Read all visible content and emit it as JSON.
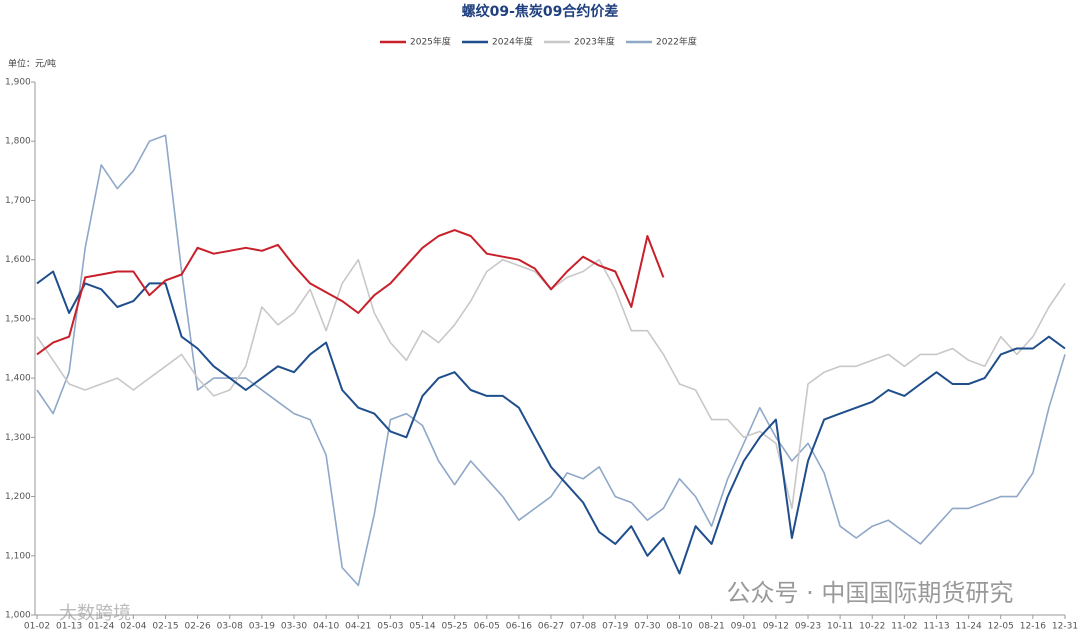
{
  "chart_data": {
    "type": "line",
    "title": "螺纹09-焦炭09合约价差",
    "y_unit": "单位：元/吨",
    "watermarks": [
      "公众号 · 中国国际期货研究",
      "大数跨境"
    ],
    "categories": [
      "01-02",
      null,
      "01-13",
      null,
      "01-24",
      null,
      "02-04",
      null,
      "02-15",
      null,
      "02-26",
      null,
      "03-08",
      null,
      "03-19",
      null,
      "03-30",
      null,
      "04-10",
      null,
      "04-21",
      null,
      "05-03",
      null,
      "05-14",
      null,
      "05-25",
      null,
      "06-05",
      null,
      "06-16",
      null,
      "06-27",
      null,
      "07-08",
      null,
      "07-19",
      null,
      "07-30",
      null,
      "08-10",
      null,
      "08-21",
      null,
      "09-01",
      null,
      "09-12",
      null,
      "09-23",
      null,
      "10-11",
      null,
      "10-22",
      null,
      "11-02",
      null,
      "11-13",
      null,
      "11-24",
      null,
      "12-05",
      null,
      "12-16",
      null,
      "12-31"
    ],
    "series": [
      {
        "name": "2025年度",
        "color": "#c8202a",
        "values": [
          1440,
          1460,
          1470,
          1570,
          1575,
          1580,
          1580,
          1540,
          1565,
          1575,
          1620,
          1610,
          1615,
          1620,
          1615,
          1625,
          1590,
          1560,
          1545,
          1530,
          1510,
          1540,
          1560,
          1590,
          1620,
          1640,
          1650,
          1640,
          1610,
          1605,
          1600,
          1585,
          1550,
          1580,
          1605,
          1590,
          1580,
          1520,
          1640,
          1570,
          null,
          null,
          null,
          null,
          null,
          null,
          null,
          null,
          null,
          null,
          null,
          null,
          null,
          null,
          null,
          null,
          null,
          null,
          null,
          null,
          null,
          null,
          null,
          null,
          null
        ]
      },
      {
        "name": "2024年度",
        "color": "#1f4e8c",
        "values": [
          1560,
          1580,
          1510,
          1560,
          1550,
          1520,
          1530,
          1560,
          1560,
          1470,
          1450,
          1420,
          1400,
          1380,
          1400,
          1420,
          1410,
          1440,
          1460,
          1380,
          1350,
          1340,
          1310,
          1300,
          1370,
          1400,
          1410,
          1380,
          1370,
          1370,
          1350,
          1300,
          1250,
          1220,
          1190,
          1140,
          1120,
          1150,
          1100,
          1130,
          1070,
          1150,
          1120,
          1200,
          1260,
          1300,
          1330,
          1130,
          1260,
          1330,
          1340,
          1350,
          1360,
          1380,
          1370,
          1390,
          1410,
          1390,
          1390,
          1400,
          1440,
          1450,
          1450,
          1470,
          1450
        ]
      },
      {
        "name": "2023年度",
        "color": "#c8c8c8",
        "values": [
          1470,
          1430,
          1390,
          1380,
          1390,
          1400,
          1380,
          1400,
          1420,
          1440,
          1400,
          1370,
          1380,
          1420,
          1520,
          1490,
          1510,
          1550,
          1480,
          1560,
          1600,
          1510,
          1460,
          1430,
          1480,
          1460,
          1490,
          1530,
          1580,
          1600,
          1590,
          1580,
          1550,
          1570,
          1580,
          1600,
          1550,
          1480,
          1480,
          1440,
          1390,
          1380,
          1330,
          1330,
          1300,
          1310,
          1290,
          1180,
          1390,
          1410,
          1420,
          1420,
          1430,
          1440,
          1420,
          1440,
          1440,
          1450,
          1430,
          1420,
          1470,
          1440,
          1470,
          1520,
          1560
        ]
      },
      {
        "name": "2022年度",
        "color": "#8fa8c8",
        "values": [
          1380,
          1340,
          1410,
          1620,
          1760,
          1720,
          1750,
          1800,
          1810,
          1580,
          1380,
          1400,
          1400,
          1400,
          1380,
          1360,
          1340,
          1330,
          1270,
          1080,
          1050,
          1170,
          1330,
          1340,
          1320,
          1260,
          1220,
          1260,
          1230,
          1200,
          1160,
          1180,
          1200,
          1240,
          1230,
          1250,
          1200,
          1190,
          1160,
          1180,
          1230,
          1200,
          1150,
          1230,
          1290,
          1350,
          1300,
          1260,
          1290,
          1240,
          1150,
          1130,
          1150,
          1160,
          1140,
          1120,
          1150,
          1180,
          1180,
          1190,
          1200,
          1200,
          1240,
          1350,
          1440
        ]
      }
    ],
    "ylim": [
      1000,
      1900
    ],
    "yticks": [
      {
        "value": 1000,
        "label": "1,000"
      },
      {
        "value": 1100,
        "label": "1,100"
      },
      {
        "value": 1200,
        "label": "1,200"
      },
      {
        "value": 1300,
        "label": "1,300"
      },
      {
        "value": 1400,
        "label": "1,400"
      },
      {
        "value": 1500,
        "label": "1,500"
      },
      {
        "value": 1600,
        "label": "1,600"
      },
      {
        "value": 1700,
        "label": "1,700"
      },
      {
        "value": 1800,
        "label": "1,800"
      },
      {
        "value": 1900,
        "label": "1,900"
      }
    ],
    "grid": false,
    "legend": "top"
  }
}
